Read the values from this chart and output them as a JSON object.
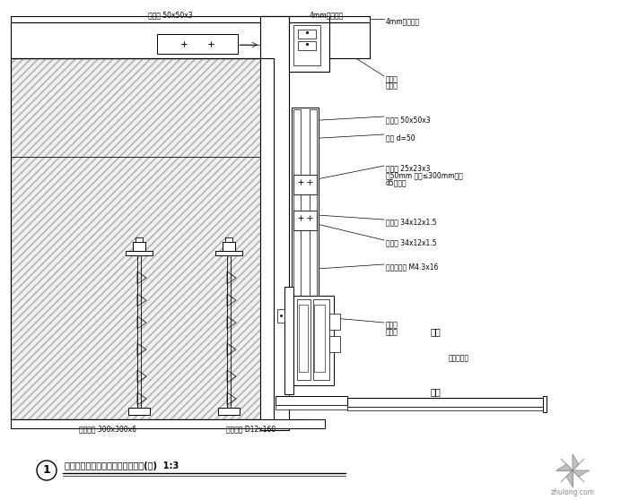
{
  "bg_color": "#ffffff",
  "title_number": "1",
  "title_text": "隔热断桥窗与铝塑板连接节点详图(一)",
  "title_scale": "1:3",
  "label_top_left1": "方钢管 50x50x3",
  "label_top_right1": "4mm单铝复板",
  "label_r1": "4mm单铝复板",
  "label_r2a": "耐候胶",
  "label_r2b": "泡沫棒",
  "label_r3": "方钢管 50x50x3",
  "label_r4": "螺栓 d=50",
  "label_r5a": "角钢带 25x23x3",
  "label_r5b": "长50mm 间距≤300mm等距",
  "label_r5c": "d5盘头钉",
  "label_r6": "方钢管 34x12x1.5",
  "label_r7": "方钢管 34x12x1.5",
  "label_r8": "自钻自攻钉 M4.3x16",
  "label_r9a": "耐候胶",
  "label_r9b": "泡沫棒",
  "label_outdoor": "室外",
  "label_indoor": "室内",
  "label_outdoor_panel": "铝塑复板管",
  "label_bottom1": "后置锚栓 300x300x6",
  "label_bottom2": "化学锚栓 D12x160",
  "watermark": "zhulong.com"
}
